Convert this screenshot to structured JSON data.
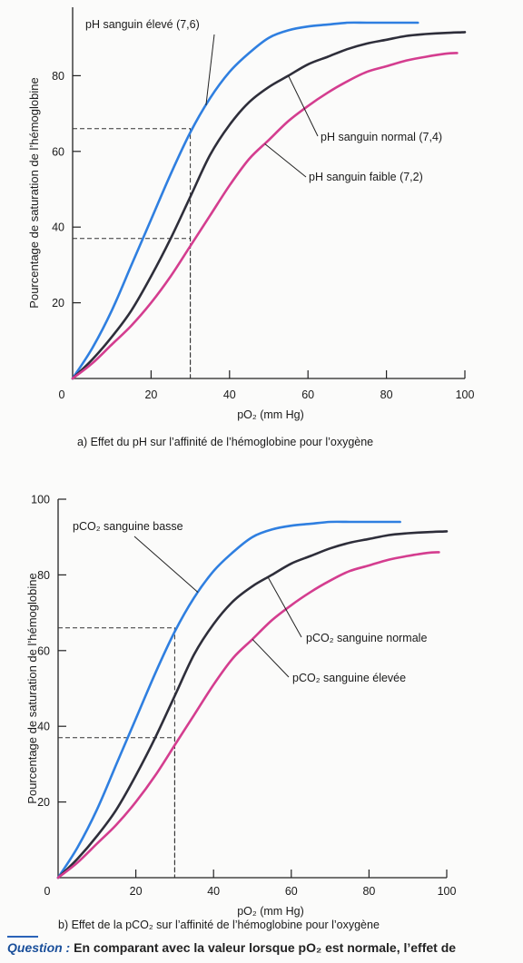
{
  "chart_data": [
    {
      "type": "line",
      "caption": "a) Effet du pH sur l’affinité de l’hémoglobine pour l’oxygène",
      "xlabel": "pO₂ (mm Hg)",
      "ylabel": "Pourcentage de saturation de l’hémoglobine",
      "xlim": [
        0,
        100
      ],
      "ylim": [
        0,
        100
      ],
      "x_ticks": [
        0,
        20,
        40,
        60,
        80,
        100
      ],
      "y_ticks": [
        20,
        40,
        60,
        80
      ],
      "series": [
        {
          "name": "pH sanguin élevé (7,6)",
          "color": "#2f7fe0",
          "x": [
            0,
            5,
            10,
            15,
            20,
            25,
            30,
            35,
            40,
            45,
            50,
            55,
            60,
            65,
            70,
            75,
            80,
            85,
            88
          ],
          "y": [
            0,
            8,
            18,
            30,
            42,
            54,
            65,
            74,
            81,
            86,
            90,
            92,
            93,
            93.5,
            94,
            94,
            94,
            94,
            94
          ]
        },
        {
          "name": "pH sanguin normal (7,4)",
          "color": "#2e2e3a",
          "x": [
            0,
            5,
            10,
            15,
            20,
            25,
            30,
            35,
            40,
            45,
            50,
            55,
            60,
            65,
            70,
            75,
            80,
            85,
            90,
            95,
            100
          ],
          "y": [
            0,
            5,
            11,
            18,
            27,
            37,
            48,
            59,
            67,
            73,
            77,
            80,
            83,
            85,
            87,
            88.5,
            89.5,
            90.5,
            91,
            91.3,
            91.5
          ]
        },
        {
          "name": "pH sanguin faible (7,2)",
          "color": "#d43d8f",
          "x": [
            0,
            5,
            10,
            15,
            20,
            25,
            30,
            35,
            40,
            45,
            50,
            55,
            60,
            65,
            70,
            75,
            80,
            85,
            90,
            95,
            98
          ],
          "y": [
            0,
            4,
            9,
            14,
            20,
            27,
            35,
            43,
            51,
            58,
            63,
            68,
            72,
            75.5,
            78.5,
            81,
            82.5,
            84,
            85,
            85.8,
            86
          ]
        }
      ],
      "reference_lines": [
        {
          "x": 30,
          "y": 66
        },
        {
          "x": 30,
          "y": 37
        }
      ],
      "annotations": [
        "pH sanguin élevé (7,6)",
        "pH sanguin normal (7,4)",
        "pH sanguin faible (7,2)"
      ]
    },
    {
      "type": "line",
      "caption": "b) Effet de la pCO₂ sur l’affinité de l’hémoglobine pour l’oxygène",
      "xlabel": "pO₂ (mm Hg)",
      "ylabel": "Pourcentage de saturation de l’hémoglobine",
      "xlim": [
        0,
        100
      ],
      "ylim": [
        0,
        100
      ],
      "x_ticks": [
        0,
        20,
        40,
        60,
        80,
        100
      ],
      "y_ticks": [
        20,
        40,
        60,
        80,
        100
      ],
      "series": [
        {
          "name": "pCO₂ sanguine basse",
          "color": "#2f7fe0",
          "x": [
            0,
            5,
            10,
            15,
            20,
            25,
            30,
            35,
            40,
            45,
            50,
            55,
            60,
            65,
            70,
            75,
            80,
            85,
            88
          ],
          "y": [
            0,
            8,
            18,
            30,
            42,
            54,
            65,
            74,
            81,
            86,
            90,
            92,
            93,
            93.5,
            94,
            94,
            94,
            94,
            94
          ]
        },
        {
          "name": "pCO₂ sanguine normale",
          "color": "#2e2e3a",
          "x": [
            0,
            5,
            10,
            15,
            20,
            25,
            30,
            35,
            40,
            45,
            50,
            55,
            60,
            65,
            70,
            75,
            80,
            85,
            90,
            95,
            100
          ],
          "y": [
            0,
            5,
            11,
            18,
            27,
            37,
            48,
            59,
            67,
            73,
            77,
            80,
            83,
            85,
            87,
            88.5,
            89.5,
            90.5,
            91,
            91.3,
            91.5
          ]
        },
        {
          "name": "pCO₂ sanguine élevée",
          "color": "#d43d8f",
          "x": [
            0,
            5,
            10,
            15,
            20,
            25,
            30,
            35,
            40,
            45,
            50,
            55,
            60,
            65,
            70,
            75,
            80,
            85,
            90,
            95,
            98
          ],
          "y": [
            0,
            4,
            9,
            14,
            20,
            27,
            35,
            43,
            51,
            58,
            63,
            68,
            72,
            75.5,
            78.5,
            81,
            82.5,
            84,
            85,
            85.8,
            86
          ]
        }
      ],
      "reference_lines": [
        {
          "x": 30,
          "y": 66
        },
        {
          "x": 30,
          "y": 37
        }
      ],
      "annotations": [
        "pCO₂ sanguine basse",
        "pCO₂ sanguine normale",
        "pCO₂ sanguine élevée"
      ]
    }
  ],
  "question": {
    "label": "Question :",
    "text": "En comparant avec la valeur lorsque pO₂ est normale, l’effet de"
  }
}
